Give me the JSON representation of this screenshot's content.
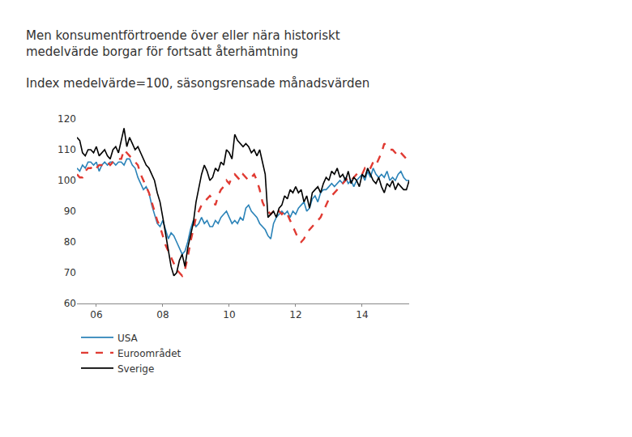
{
  "chart_data": {
    "type": "line",
    "title": "Men konsumentförtroende över eller nära historiskt\nmedelvärde borgar för fortsatt återhämtning",
    "subtitle": "Index medelvärde=100, säsongsrensade månadsvärden",
    "categories": [
      null,
      null,
      null,
      null,
      null,
      null,
      null,
      "06",
      null,
      null,
      null,
      null,
      null,
      null,
      null,
      null,
      null,
      null,
      null,
      null,
      null,
      null,
      null,
      null,
      null,
      null,
      null,
      null,
      null,
      null,
      null,
      "08",
      null,
      null,
      null,
      null,
      null,
      null,
      null,
      null,
      null,
      null,
      null,
      null,
      null,
      null,
      null,
      null,
      null,
      null,
      null,
      null,
      null,
      null,
      null,
      "10",
      null,
      null,
      null,
      null,
      null,
      null,
      null,
      null,
      null,
      null,
      null,
      null,
      null,
      null,
      null,
      null,
      null,
      null,
      null,
      null,
      null,
      null,
      null,
      "12",
      null,
      null,
      null,
      null,
      null,
      null,
      null,
      null,
      null,
      null,
      null,
      null,
      null,
      null,
      null,
      null,
      null,
      null,
      null,
      null,
      null,
      null,
      null,
      "14",
      null,
      null,
      null,
      null,
      null,
      null,
      null,
      null,
      null,
      null,
      null,
      null,
      null,
      null,
      null,
      null,
      null
    ],
    "series": [
      {
        "name": "USA",
        "color": "#2b83b8",
        "line_style": "solid",
        "values": [
          104,
          103,
          105,
          104,
          106,
          106,
          105,
          106,
          103,
          105,
          106,
          105,
          106,
          106,
          105,
          106,
          106,
          105,
          107,
          107,
          105,
          104,
          101,
          99,
          97,
          98,
          96,
          92,
          89,
          86,
          85,
          87,
          84,
          81,
          83,
          82,
          80,
          78,
          76,
          77,
          80,
          84,
          87,
          85,
          86,
          88,
          86,
          87,
          85,
          85,
          87,
          86,
          88,
          89,
          90,
          88,
          86,
          87,
          86,
          88,
          87,
          91,
          92,
          90,
          89,
          88,
          86,
          85,
          84,
          82,
          81,
          86,
          88,
          89,
          90,
          89,
          90,
          88,
          90,
          89,
          91,
          92,
          93,
          90,
          91,
          94,
          95,
          93,
          96,
          97,
          97,
          98,
          99,
          98,
          99,
          100,
          99,
          101,
          99,
          100,
          98,
          100,
          101,
          102,
          100,
          103,
          101,
          104,
          102,
          101,
          102,
          101,
          103,
          100,
          101,
          100,
          102,
          103,
          101,
          100,
          100
        ]
      },
      {
        "name": "Euroområdet",
        "color": "#e03a32",
        "line_style": "dashed",
        "values": [
          102,
          101,
          101,
          103,
          104,
          104,
          105,
          104,
          105,
          105,
          105,
          106,
          105,
          106,
          106,
          107,
          107,
          110,
          109,
          108,
          107,
          106,
          105,
          102,
          100,
          98,
          96,
          93,
          90,
          87,
          85,
          82,
          79,
          77,
          75,
          73,
          71,
          70,
          69,
          71,
          75,
          80,
          84,
          88,
          90,
          92,
          93,
          94,
          95,
          94,
          92,
          95,
          97,
          98,
          100,
          99,
          101,
          102,
          101,
          100,
          102,
          101,
          100,
          101,
          102,
          100,
          97,
          93,
          91,
          90,
          89,
          90,
          91,
          90,
          89,
          90,
          89,
          87,
          85,
          83,
          81,
          80,
          81,
          83,
          84,
          85,
          86,
          87,
          88,
          90,
          92,
          94,
          95,
          96,
          97,
          98,
          99,
          100,
          101,
          100,
          101,
          102,
          103,
          102,
          104,
          103,
          104,
          106,
          105,
          107,
          109,
          112,
          111,
          110,
          110,
          109,
          108,
          109,
          108,
          107,
          107
        ]
      },
      {
        "name": "Sverige",
        "color": "#000000",
        "line_style": "solid",
        "values": [
          114,
          113,
          109,
          108,
          110,
          110,
          109,
          111,
          108,
          109,
          110,
          108,
          107,
          110,
          111,
          109,
          113,
          117,
          111,
          114,
          112,
          110,
          111,
          109,
          107,
          105,
          104,
          102,
          100,
          96,
          93,
          88,
          83,
          77,
          72,
          69,
          70,
          74,
          76,
          72,
          78,
          82,
          86,
          93,
          98,
          102,
          105,
          103,
          100,
          101,
          104,
          103,
          106,
          105,
          110,
          109,
          107,
          115,
          113,
          112,
          111,
          112,
          111,
          109,
          110,
          108,
          110,
          106,
          102,
          88,
          89,
          90,
          88,
          91,
          92,
          95,
          94,
          97,
          96,
          98,
          96,
          97,
          93,
          95,
          91,
          96,
          97,
          98,
          96,
          99,
          101,
          100,
          103,
          102,
          104,
          101,
          102,
          100,
          103,
          99,
          101,
          100,
          98,
          102,
          101,
          104,
          102,
          100,
          99,
          101,
          98,
          96,
          99,
          98,
          100,
          97,
          99,
          98,
          97,
          97,
          100
        ]
      }
    ],
    "ylim": [
      60,
      120
    ],
    "yticks": [
      60,
      70,
      80,
      90,
      100,
      110,
      120
    ],
    "y2lim": [
      60,
      120
    ],
    "y2ticks": [
      60,
      70,
      80,
      90,
      100,
      110,
      120
    ],
    "grid": false,
    "legend": "bottom left"
  }
}
